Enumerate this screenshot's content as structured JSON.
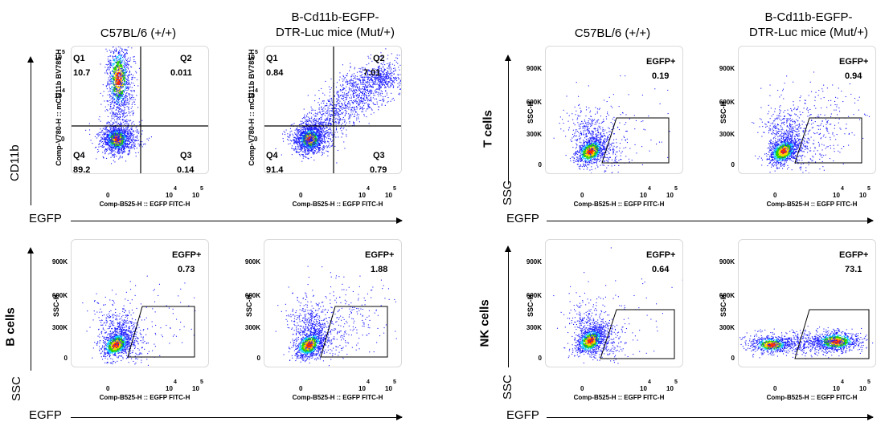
{
  "columns": {
    "left_wt": "C57BL/6 (+/+)",
    "left_mut": "B-Cd11b-EGFP-\nDTR-Luc mice (Mut/+)",
    "right_wt": "C57BL/6 (+/+)",
    "right_mut": "B-Cd11b-EGFP-\nDTR-Luc mice (Mut/+)"
  },
  "axis_titles": {
    "egfp": "EGFP",
    "cd11b": "CD11b",
    "ssc": "SSC"
  },
  "row_labels": {
    "t_cells": "T cells",
    "b_cells": "B cells",
    "nk_cells": "NK cells"
  },
  "plot_axes": {
    "x_param": "Comp-B525-H :: EGFP FITC-H",
    "y_cd11b": "Comp-V780-H :: mCD11b BV785-H",
    "y_ssc": "SSC-H",
    "x_ticks": [
      "0",
      "10",
      "4",
      "10",
      "5"
    ],
    "cd11b_ticks": [
      "10",
      "5",
      "10",
      "4",
      "0"
    ],
    "ssc_ticks": [
      "900K",
      "600K",
      "300K",
      "0"
    ]
  },
  "chart_data": [
    {
      "type": "scatter",
      "panel": "CD11b vs EGFP, C57BL/6 (+/+)",
      "xlabel": "Comp-B525-H :: EGFP FITC-H",
      "ylabel": "Comp-V780-H :: mCD11b BV785-H",
      "quadrants": [
        {
          "name": "Q1",
          "value": "10.7"
        },
        {
          "name": "Q2",
          "value": "0.011"
        },
        {
          "name": "Q3",
          "value": "0.14"
        },
        {
          "name": "Q4",
          "value": "89.2"
        }
      ]
    },
    {
      "type": "scatter",
      "panel": "CD11b vs EGFP, B-Cd11b-EGFP-DTR-Luc mice (Mut/+)",
      "xlabel": "Comp-B525-H :: EGFP FITC-H",
      "ylabel": "Comp-V780-H :: mCD11b BV785-H",
      "quadrants": [
        {
          "name": "Q1",
          "value": "0.84"
        },
        {
          "name": "Q2",
          "value": "7.01"
        },
        {
          "name": "Q3",
          "value": "0.79"
        },
        {
          "name": "Q4",
          "value": "91.4"
        }
      ]
    },
    {
      "type": "scatter",
      "panel": "B cells, C57BL/6 (+/+)",
      "gate": "EGFP+",
      "value": "0.73"
    },
    {
      "type": "scatter",
      "panel": "B cells, Mut/+",
      "gate": "EGFP+",
      "value": "1.88"
    },
    {
      "type": "scatter",
      "panel": "T cells, C57BL/6 (+/+)",
      "gate": "EGFP+",
      "value": "0.19"
    },
    {
      "type": "scatter",
      "panel": "T cells, Mut/+",
      "gate": "EGFP+",
      "value": "0.94"
    },
    {
      "type": "scatter",
      "panel": "NK cells, C57BL/6 (+/+)",
      "gate": "EGFP+",
      "value": "0.64"
    },
    {
      "type": "scatter",
      "panel": "NK cells, Mut/+",
      "gate": "EGFP+",
      "value": "73.1"
    }
  ]
}
